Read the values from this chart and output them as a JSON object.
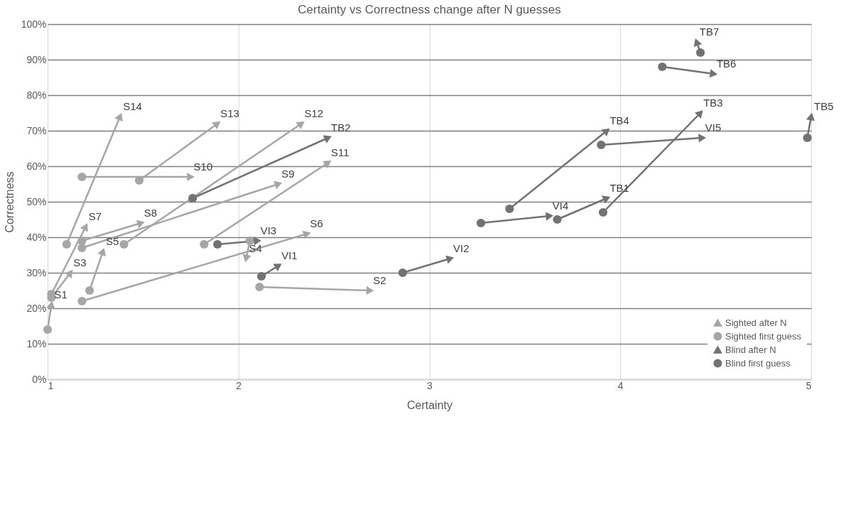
{
  "chart_data": {
    "type": "scatter",
    "title": "Certainty vs Correctness change after N guesses",
    "xlabel": "Certainty",
    "ylabel": "Correctness",
    "xlim": [
      1,
      5
    ],
    "xticks": [
      1,
      2,
      3,
      4,
      5
    ],
    "ylim": [
      0,
      100
    ],
    "yticks": [
      {
        "value": 0,
        "label": "0%"
      },
      {
        "value": 10,
        "label": "10%"
      },
      {
        "value": 20,
        "label": "20%"
      },
      {
        "value": 30,
        "label": "30%"
      },
      {
        "value": 40,
        "label": "40%"
      },
      {
        "value": 50,
        "label": "50%"
      },
      {
        "value": 60,
        "label": "60%"
      },
      {
        "value": 70,
        "label": "70%"
      },
      {
        "value": 80,
        "label": "80%"
      },
      {
        "value": 90,
        "label": "90%"
      },
      {
        "value": 100,
        "label": "100%"
      }
    ],
    "grid": true,
    "legend": "bottom right",
    "series": [
      {
        "name": "Sighted after N",
        "marker": "triangle",
        "color": "#a6a6a6",
        "x": [
          1.02,
          2.69,
          1.12,
          2.04,
          1.29,
          2.36,
          1.2,
          1.49,
          2.21,
          1.75,
          2.47,
          2.33,
          1.89,
          1.38
        ],
        "values": [
          21,
          25,
          30,
          34,
          36,
          41,
          43,
          44,
          55,
          57,
          61,
          72,
          72,
          74
        ]
      },
      {
        "name": "Sighted first guess",
        "marker": "circle",
        "color": "#a6a6a6",
        "x": [
          1.0,
          2.11,
          1.02,
          2.06,
          1.22,
          1.18,
          1.02,
          1.18,
          1.18,
          1.18,
          1.82,
          1.4,
          1.48,
          1.1
        ],
        "values": [
          14,
          26,
          23,
          39,
          25,
          22,
          24,
          39,
          37,
          57,
          38,
          38,
          56,
          38
        ]
      },
      {
        "name": "Blind after N",
        "marker": "triangle",
        "color": "#767171",
        "x": [
          3.93,
          2.47,
          4.42,
          3.93,
          5.0,
          4.49,
          4.4,
          2.21,
          3.11,
          2.1,
          3.63,
          4.43
        ],
        "values": [
          51,
          68,
          75,
          70,
          74,
          86,
          95,
          32,
          34,
          39,
          46,
          68
        ]
      },
      {
        "name": "Blind first guess",
        "marker": "circle",
        "color": "#767171",
        "x": [
          3.67,
          1.76,
          3.91,
          3.42,
          4.98,
          4.22,
          4.42,
          2.12,
          2.86,
          1.89,
          3.27,
          3.9
        ],
        "values": [
          45,
          51,
          47,
          48,
          68,
          88,
          92,
          29,
          30,
          38,
          44,
          66
        ]
      }
    ],
    "annotations": [
      {
        "text": "S1",
        "x": 1.02,
        "y": 21
      },
      {
        "text": "S2",
        "x": 2.69,
        "y": 25
      },
      {
        "text": "S3",
        "x": 1.12,
        "y": 30
      },
      {
        "text": "S4",
        "x": 2.04,
        "y": 34
      },
      {
        "text": "S5",
        "x": 1.29,
        "y": 36
      },
      {
        "text": "S6",
        "x": 2.36,
        "y": 41
      },
      {
        "text": "S7",
        "x": 1.2,
        "y": 43
      },
      {
        "text": "S8",
        "x": 1.49,
        "y": 44
      },
      {
        "text": "S9",
        "x": 2.21,
        "y": 55
      },
      {
        "text": "S10",
        "x": 1.75,
        "y": 57
      },
      {
        "text": "S11",
        "x": 2.47,
        "y": 61
      },
      {
        "text": "S12",
        "x": 2.33,
        "y": 72
      },
      {
        "text": "S13",
        "x": 1.89,
        "y": 72
      },
      {
        "text": "S14",
        "x": 1.38,
        "y": 74
      },
      {
        "text": "TB1",
        "x": 3.93,
        "y": 51
      },
      {
        "text": "TB2",
        "x": 2.47,
        "y": 68
      },
      {
        "text": "TB3",
        "x": 4.42,
        "y": 75
      },
      {
        "text": "TB4",
        "x": 3.93,
        "y": 70
      },
      {
        "text": "TB5",
        "x": 5.0,
        "y": 74
      },
      {
        "text": "TB6",
        "x": 4.49,
        "y": 86
      },
      {
        "text": "TB7",
        "x": 4.4,
        "y": 95
      },
      {
        "text": "VI1",
        "x": 2.21,
        "y": 32
      },
      {
        "text": "VI2",
        "x": 3.11,
        "y": 34
      },
      {
        "text": "VI3",
        "x": 2.1,
        "y": 39
      },
      {
        "text": "VI4",
        "x": 3.63,
        "y": 46
      },
      {
        "text": "VI5",
        "x": 4.43,
        "y": 68
      }
    ]
  }
}
